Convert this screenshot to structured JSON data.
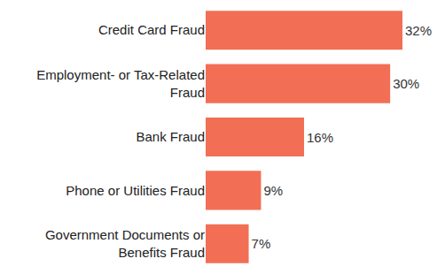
{
  "chart_data": {
    "type": "bar",
    "orientation": "horizontal",
    "categories": [
      "Credit Card Fraud",
      "Employment- or Tax-Related Fraud",
      "Bank Fraud",
      "Phone or Utilities Fraud",
      "Government Documents or Benefits Fraud"
    ],
    "values": [
      32,
      30,
      16,
      9,
      7
    ],
    "value_labels": [
      "32%",
      "30%",
      "16%",
      "9%",
      "7%"
    ],
    "color": "#f26f55",
    "xlim": [
      0,
      32
    ],
    "grid": false,
    "data_labels": true,
    "tick_labels": "y"
  }
}
